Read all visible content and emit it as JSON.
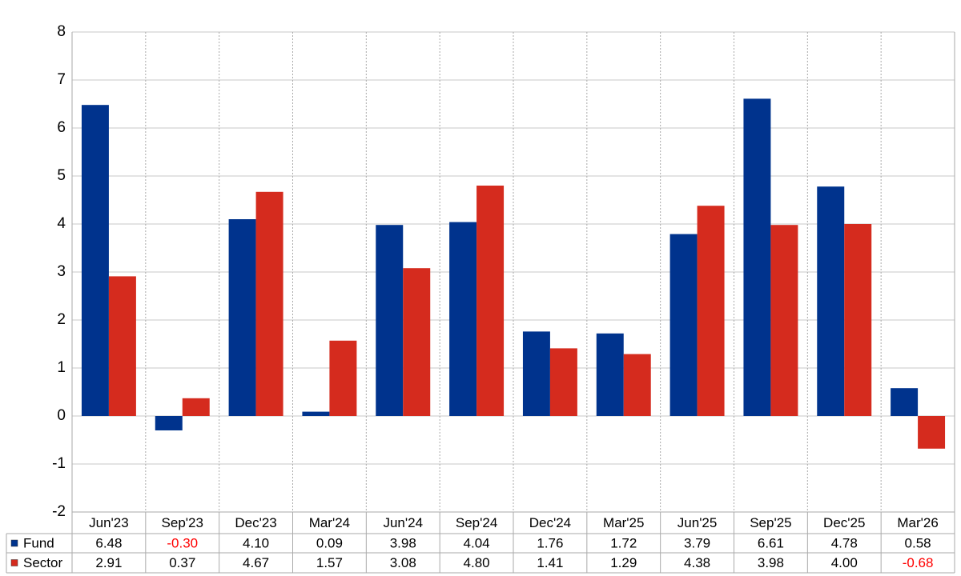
{
  "chart_data": {
    "type": "bar",
    "categories": [
      "Jun'23",
      "Sep'23",
      "Dec'23",
      "Mar'24",
      "Jun'24",
      "Sep'24",
      "Dec'24",
      "Mar'25",
      "Jun'25",
      "Sep'25",
      "Dec'25",
      "Mar'26"
    ],
    "series": [
      {
        "name": "Fund",
        "color": "#00338d",
        "values": [
          6.48,
          -0.3,
          4.1,
          0.09,
          3.98,
          4.04,
          1.76,
          1.72,
          3.79,
          6.61,
          4.78,
          0.58
        ],
        "value_labels": [
          "6.48",
          "-0.30",
          "4.10",
          "0.09",
          "3.98",
          "4.04",
          "1.76",
          "1.72",
          "3.79",
          "6.61",
          "4.78",
          "0.58"
        ]
      },
      {
        "name": "Sector",
        "color": "#d52b1e",
        "values": [
          2.91,
          0.37,
          4.67,
          1.57,
          3.08,
          4.8,
          1.41,
          1.29,
          4.38,
          3.98,
          4.0,
          -0.68
        ],
        "value_labels": [
          "2.91",
          "0.37",
          "4.67",
          "1.57",
          "3.08",
          "4.80",
          "1.41",
          "1.29",
          "4.38",
          "3.98",
          "4.00",
          "-0.68"
        ]
      }
    ],
    "ylim": [
      -2,
      8
    ],
    "yticks": [
      -2,
      -1,
      0,
      1,
      2,
      3,
      4,
      5,
      6,
      7,
      8
    ],
    "grid": true,
    "negative_label_color": "#ff0000"
  }
}
